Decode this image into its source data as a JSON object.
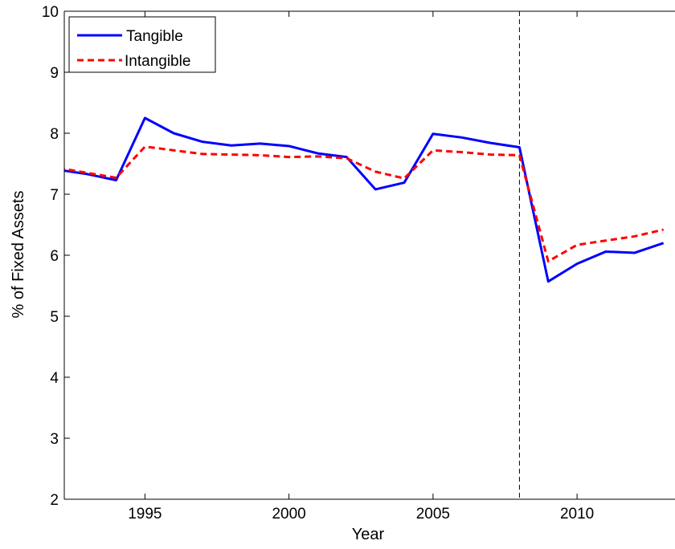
{
  "chart_data": {
    "type": "line",
    "title": "",
    "xlabel": "Year",
    "ylabel": "% of Fixed Assets",
    "xlim": [
      1992.2,
      2013.4
    ],
    "ylim": [
      2,
      10
    ],
    "x_ticks": [
      1995,
      2000,
      2005,
      2010
    ],
    "y_ticks": [
      2,
      3,
      4,
      5,
      6,
      7,
      8,
      9,
      10
    ],
    "grid": false,
    "legend_position": "top-left",
    "vertical_reference_line": {
      "x": 2008,
      "style": "dashed",
      "color": "#000000"
    },
    "x": [
      1992,
      1993,
      1994,
      1995,
      1996,
      1997,
      1998,
      1999,
      2000,
      2001,
      2002,
      2003,
      2004,
      2005,
      2006,
      2007,
      2008,
      2009,
      2010,
      2011,
      2012,
      2013
    ],
    "series": [
      {
        "name": "Tangible",
        "color": "#0000ff",
        "style": "solid",
        "values": [
          7.4,
          7.33,
          7.23,
          8.25,
          8.0,
          7.86,
          7.8,
          7.83,
          7.79,
          7.67,
          7.61,
          7.08,
          7.19,
          7.99,
          7.93,
          7.84,
          7.77,
          5.57,
          5.86,
          6.06,
          6.04,
          6.2
        ]
      },
      {
        "name": "Intangible",
        "color": "#ff0000",
        "style": "dashed",
        "values": [
          7.43,
          7.35,
          7.27,
          7.78,
          7.72,
          7.66,
          7.65,
          7.64,
          7.61,
          7.62,
          7.59,
          7.37,
          7.26,
          7.72,
          7.69,
          7.65,
          7.64,
          5.9,
          6.17,
          6.24,
          6.31,
          6.42
        ]
      }
    ]
  }
}
